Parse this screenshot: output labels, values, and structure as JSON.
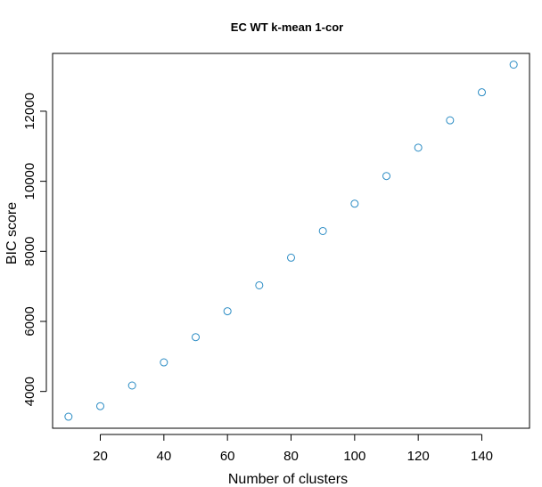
{
  "chart_data": {
    "type": "scatter",
    "title": "EC WT k-mean 1-cor",
    "xlabel": "Number of clusters",
    "ylabel": "BIC score",
    "xlim": [
      5,
      155
    ],
    "ylim": [
      2950,
      13650
    ],
    "x_ticks": [
      20,
      40,
      60,
      80,
      100,
      120,
      140
    ],
    "y_ticks": [
      4000,
      6000,
      8000,
      10000,
      12000
    ],
    "x": [
      10,
      20,
      30,
      40,
      50,
      60,
      70,
      80,
      90,
      100,
      110,
      120,
      130,
      140,
      150
    ],
    "y": [
      3280,
      3580,
      4170,
      4830,
      5550,
      6290,
      7030,
      7820,
      8580,
      9360,
      10150,
      10960,
      11740,
      12540,
      13330
    ],
    "marker": "open-circle",
    "marker_color": "#2b8cc4",
    "grid": false
  }
}
